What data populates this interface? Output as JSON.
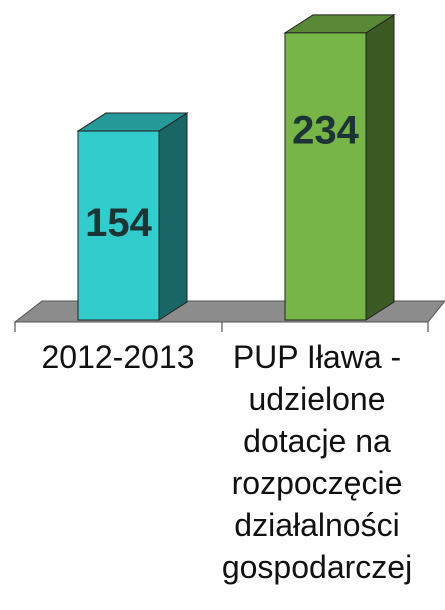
{
  "chart_data": {
    "type": "bar3d",
    "categories": [
      "2012-2013",
      "PUP Iława - udzielone dotacje na rozpoczęcie działalności gospodarczej"
    ],
    "values": [
      154,
      234
    ],
    "colors": [
      "#33cccc",
      "#77b548"
    ]
  }
}
